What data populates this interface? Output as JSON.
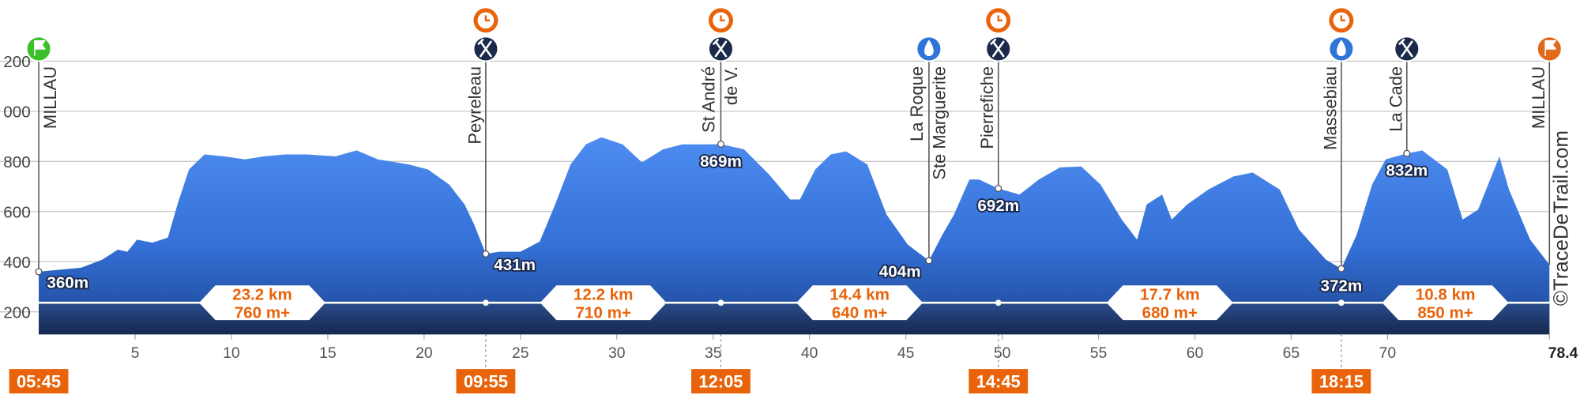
{
  "chart_data": {
    "type": "elevation-profile",
    "xlim": [
      0,
      78.4
    ],
    "ylim": [
      110,
      1200
    ],
    "yticks": [
      {
        "value": 1200,
        "label": "200"
      },
      {
        "value": 1000,
        "label": "000"
      },
      800,
      600,
      400,
      200
    ],
    "xticks": [
      5,
      10,
      15,
      20,
      25,
      30,
      35,
      40,
      45,
      50,
      55,
      60,
      65,
      70,
      78.4
    ],
    "grid": true,
    "profile": {
      "x": [
        0,
        2.2,
        3.3,
        4.1,
        4.6,
        5.1,
        5.9,
        6.7,
        7.2,
        7.8,
        8.6,
        9.6,
        10.7,
        11.7,
        12.8,
        13.9,
        15.4,
        16.5,
        17.6,
        19.2,
        20.2,
        21.3,
        22.1,
        22.6,
        23.2,
        23.9,
        25.0,
        26.0,
        26.8,
        27.6,
        28.4,
        29.2,
        30.3,
        31.3,
        32.4,
        33.4,
        34.5,
        35.4,
        36.6,
        37.9,
        39.0,
        39.5,
        40.3,
        41.1,
        41.9,
        43.0,
        44.0,
        45.1,
        46.2,
        46.9,
        47.5,
        48.3,
        48.8,
        49.8,
        50.9,
        51.9,
        53.0,
        54.1,
        55.1,
        56.2,
        57.0,
        57.5,
        58.3,
        58.8,
        59.6,
        60.7,
        62.0,
        63.0,
        64.4,
        65.4,
        66.8,
        67.6,
        68.4,
        69.2,
        69.9,
        71.0,
        71.8,
        73.1,
        73.9,
        74.7,
        75.8,
        76.3,
        77.4,
        78.4
      ],
      "y": [
        360,
        376,
        408,
        448,
        440,
        488,
        476,
        496,
        628,
        768,
        828,
        820,
        808,
        820,
        828,
        828,
        820,
        844,
        808,
        788,
        768,
        708,
        628,
        548,
        431,
        440,
        440,
        480,
        628,
        788,
        868,
        896,
        868,
        796,
        848,
        868,
        868,
        869,
        848,
        748,
        648,
        648,
        768,
        828,
        840,
        788,
        588,
        468,
        404,
        508,
        588,
        728,
        728,
        692,
        668,
        728,
        776,
        780,
        708,
        568,
        488,
        628,
        668,
        568,
        628,
        688,
        740,
        756,
        688,
        528,
        408,
        372,
        508,
        708,
        808,
        832,
        844,
        768,
        568,
        608,
        820,
        688,
        488,
        388
      ]
    },
    "waypoints": [
      {
        "name": [
          "MILLAU"
        ],
        "km": 0,
        "elevation": 360,
        "elevation_label": "360m",
        "time": "05:45",
        "icon": "start"
      },
      {
        "name": [
          "Peyreleau"
        ],
        "km": 23.2,
        "elevation": 431,
        "elevation_label": "431m",
        "time": "09:55",
        "icon": "food"
      },
      {
        "name": [
          "St André",
          "de V."
        ],
        "km": 35.4,
        "elevation": 869,
        "elevation_label": "869m",
        "time": "12:05",
        "icon": "food"
      },
      {
        "name": [
          "La Roque",
          "Ste Marguerite"
        ],
        "km": 46.2,
        "elevation": 404,
        "elevation_label": "404m",
        "icon": "water"
      },
      {
        "name": [
          "Pierrefiche"
        ],
        "km": 49.8,
        "elevation": 692,
        "elevation_label": "692m",
        "time": "14:45",
        "icon": "food"
      },
      {
        "name": [
          "Massebiau"
        ],
        "km": 67.6,
        "elevation": 372,
        "elevation_label": "372m",
        "time": "18:15",
        "icon": "water"
      },
      {
        "name": [
          "La Cade"
        ],
        "km": 71.0,
        "elevation": 832,
        "elevation_label": "832m",
        "icon": "food"
      },
      {
        "name": [
          "MILLAU"
        ],
        "km": 78.4,
        "icon": "finish"
      }
    ],
    "segments": [
      {
        "distance": "23.2 km",
        "gain": "760 m+"
      },
      {
        "distance": "12.2 km",
        "gain": "710 m+"
      },
      {
        "distance": "14.4 km",
        "gain": "640 m+"
      },
      {
        "distance": "17.7 km",
        "gain": "680 m+"
      },
      {
        "distance": "10.8 km",
        "gain": "850 m+"
      }
    ],
    "credit": "©TraceDeTrail.com"
  }
}
